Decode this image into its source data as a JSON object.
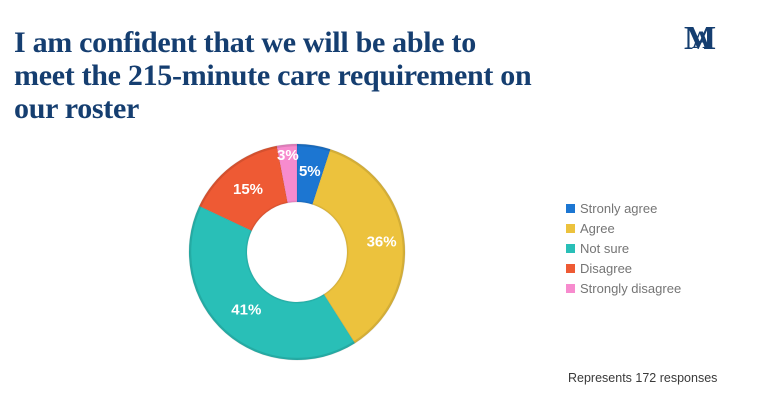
{
  "page": {
    "background": "#ffffff"
  },
  "header": {
    "title_lines": [
      "I am confident that we will be able to",
      "meet the 215-minute care requirement on",
      "our roster"
    ],
    "title_color": "#153e70",
    "logo": {
      "letter_m": "M",
      "letter_a": "A",
      "color": "#153e70"
    }
  },
  "chart_data": {
    "type": "pie",
    "subtype": "donut",
    "title": "I am confident that we will be able to meet the 215-minute care requirement on our roster",
    "start_angle_deg": 0,
    "direction": "clockwise",
    "categories": [
      "Stronly agree",
      "Agree",
      "Not sure",
      "Disagree",
      "Strongly disagree"
    ],
    "values": [
      5,
      36,
      41,
      15,
      3
    ],
    "value_labels": [
      "5%",
      "36%",
      "41%",
      "15%",
      "3%"
    ],
    "colors": [
      "#1c76d2",
      "#ecc23d",
      "#29bfb7",
      "#ee5a34",
      "#f78bce"
    ],
    "label_text_color": "#ffffff",
    "legend_position": "right",
    "legend_text_color": "#757575"
  },
  "footer": {
    "note": "Represents 172 responses",
    "note_color": "#3a3a3a"
  }
}
